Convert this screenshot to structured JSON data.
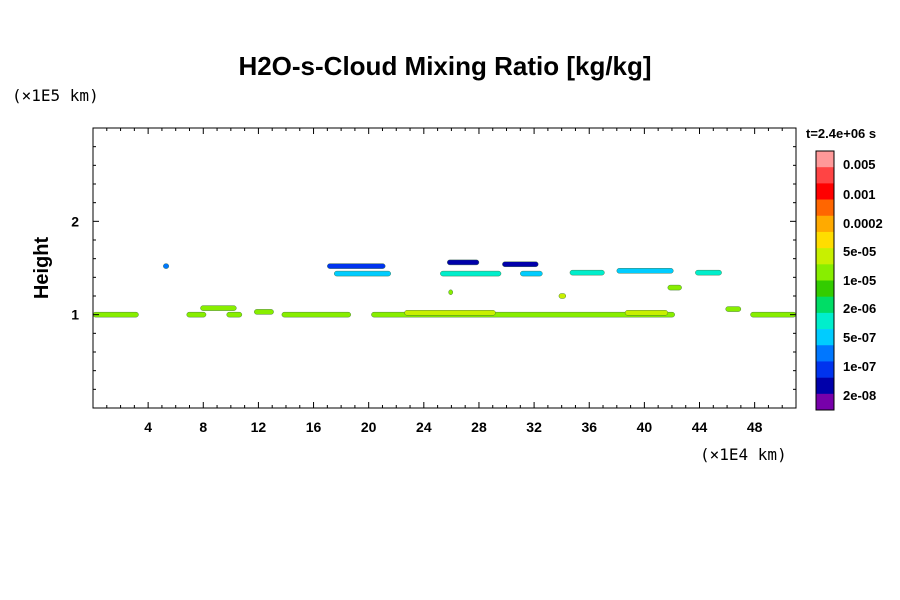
{
  "chart_data": {
    "type": "heatmap",
    "title": "H2O-s-Cloud Mixing Ratio [kg/kg]",
    "ylabel": "Height",
    "y_unit": "(×1E5 km)",
    "x_unit": "(×1E4 km)",
    "time_label": "t=2.4e+06 s",
    "xlim": [
      0,
      51
    ],
    "ylim": [
      0,
      3
    ],
    "x_ticks": [
      "4",
      "8",
      "12",
      "16",
      "20",
      "24",
      "28",
      "32",
      "36",
      "40",
      "44",
      "48"
    ],
    "x_tick_values": [
      4,
      8,
      12,
      16,
      20,
      24,
      28,
      32,
      36,
      40,
      44,
      48
    ],
    "y_ticks": [
      "1",
      "2"
    ],
    "y_tick_values": [
      1,
      2
    ],
    "colorbar": {
      "labels": [
        "0.005",
        "0.001",
        "0.0002",
        "5e-05",
        "1e-05",
        "2e-06",
        "5e-07",
        "1e-07",
        "2e-08"
      ],
      "colors": [
        "#ff9999",
        "#ff4444",
        "#ff0000",
        "#ff6600",
        "#ffaa00",
        "#ffdd00",
        "#c8f000",
        "#88ee00",
        "#33cc00",
        "#00dd66",
        "#00eecc",
        "#00ccff",
        "#0077ff",
        "#0033ee",
        "#0000aa",
        "#7700aa"
      ]
    },
    "regions": [
      {
        "x0": 0.0,
        "x1": 3.3,
        "y": 1.0,
        "level": 7
      },
      {
        "x0": 6.8,
        "x1": 8.2,
        "y": 1.0,
        "level": 7
      },
      {
        "x0": 7.8,
        "x1": 10.4,
        "y": 1.07,
        "level": 7
      },
      {
        "x0": 9.7,
        "x1": 10.8,
        "y": 1.0,
        "level": 7
      },
      {
        "x0": 11.7,
        "x1": 13.1,
        "y": 1.03,
        "level": 7
      },
      {
        "x0": 13.7,
        "x1": 18.7,
        "y": 1.0,
        "level": 7
      },
      {
        "x0": 20.2,
        "x1": 42.2,
        "y": 1.0,
        "level": 7
      },
      {
        "x0": 22.6,
        "x1": 29.2,
        "y": 1.02,
        "level": 6
      },
      {
        "x0": 38.6,
        "x1": 41.7,
        "y": 1.02,
        "level": 6
      },
      {
        "x0": 45.9,
        "x1": 47.0,
        "y": 1.06,
        "level": 7
      },
      {
        "x0": 47.7,
        "x1": 51.0,
        "y": 1.0,
        "level": 7
      },
      {
        "x0": 17.5,
        "x1": 21.6,
        "y": 1.44,
        "level": 11
      },
      {
        "x0": 17.0,
        "x1": 21.2,
        "y": 1.52,
        "level": 13
      },
      {
        "x0": 25.2,
        "x1": 29.6,
        "y": 1.44,
        "level": 10
      },
      {
        "x0": 25.7,
        "x1": 28.0,
        "y": 1.56,
        "level": 14
      },
      {
        "x0": 31.0,
        "x1": 32.6,
        "y": 1.44,
        "level": 11
      },
      {
        "x0": 29.7,
        "x1": 32.3,
        "y": 1.54,
        "level": 14
      },
      {
        "x0": 34.6,
        "x1": 37.1,
        "y": 1.45,
        "level": 10
      },
      {
        "x0": 38.0,
        "x1": 42.1,
        "y": 1.47,
        "level": 11
      },
      {
        "x0": 43.7,
        "x1": 45.6,
        "y": 1.45,
        "level": 10
      },
      {
        "x0": 5.1,
        "x1": 5.5,
        "y": 1.52,
        "level": 12
      },
      {
        "x0": 25.8,
        "x1": 26.1,
        "y": 1.24,
        "level": 7
      },
      {
        "x0": 33.8,
        "x1": 34.3,
        "y": 1.2,
        "level": 6
      },
      {
        "x0": 41.7,
        "x1": 42.7,
        "y": 1.29,
        "level": 7
      }
    ]
  }
}
